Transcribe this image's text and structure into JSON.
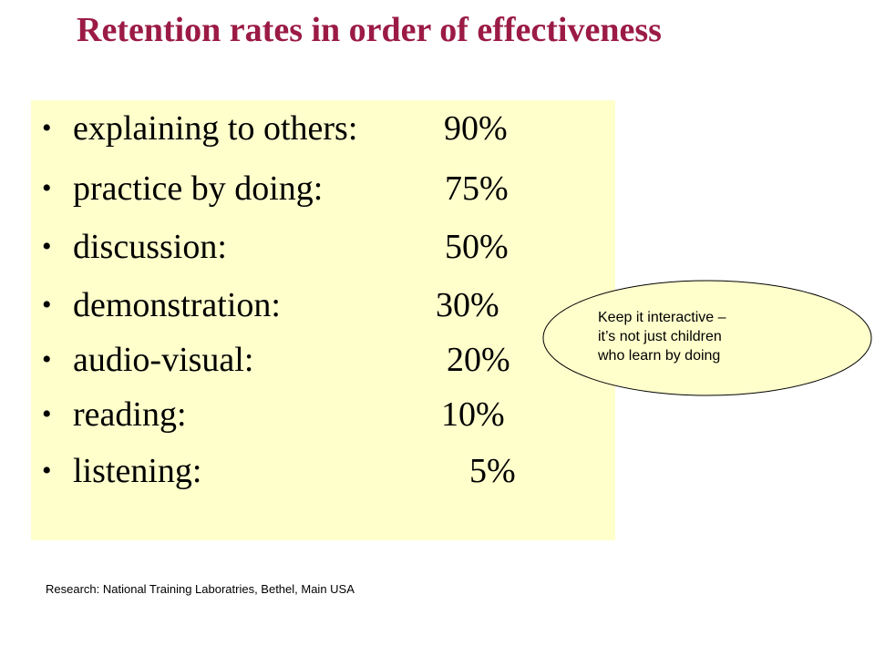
{
  "slide": {
    "title": "Retention rates in order of effectiveness",
    "bullet_symbol": "•",
    "items": [
      {
        "label": "explaining to others:",
        "value": "90%"
      },
      {
        "label": "practice by doing:",
        "value": "75%"
      },
      {
        "label": "discussion:",
        "value": "50%"
      },
      {
        "label": "demonstration:",
        "value": "30%"
      },
      {
        "label": "audio-visual:",
        "value": "20%"
      },
      {
        "label": "reading:",
        "value": "10%"
      },
      {
        "label": "listening:",
        "value": "5%"
      }
    ],
    "callout": {
      "lines": [
        "Keep it interactive –",
        "it’s not just children",
        "who learn by doing"
      ]
    },
    "source": "Research: National Training Laboratries, Bethel, Main USA"
  },
  "colors": {
    "title": "#9b1b45",
    "content_background": "#ffffcc",
    "callout_background": "#ffffcc",
    "text": "#000000"
  }
}
